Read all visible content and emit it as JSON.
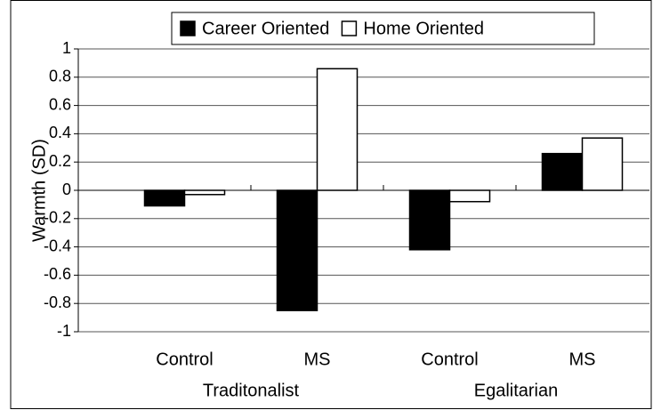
{
  "chart_data": {
    "type": "bar",
    "y_label": "Warmth (SD)",
    "categories": [
      "Control",
      "MS",
      "Control",
      "MS"
    ],
    "category_groups": [
      "Traditonalist",
      "Egalitarian"
    ],
    "series": [
      {
        "name": "Career Oriented",
        "color": "#000000",
        "values": [
          -0.11,
          -0.85,
          -0.42,
          0.26
        ]
      },
      {
        "name": "Home Oriented",
        "color": "#ffffff",
        "values": [
          -0.03,
          0.86,
          -0.08,
          0.37
        ]
      }
    ],
    "ylim": [
      -1,
      1
    ],
    "yticks": [
      -1,
      -0.8,
      -0.6,
      -0.4,
      -0.2,
      0,
      0.2,
      0.4,
      0.6,
      0.8,
      1
    ],
    "grid": true,
    "legend": "top"
  }
}
